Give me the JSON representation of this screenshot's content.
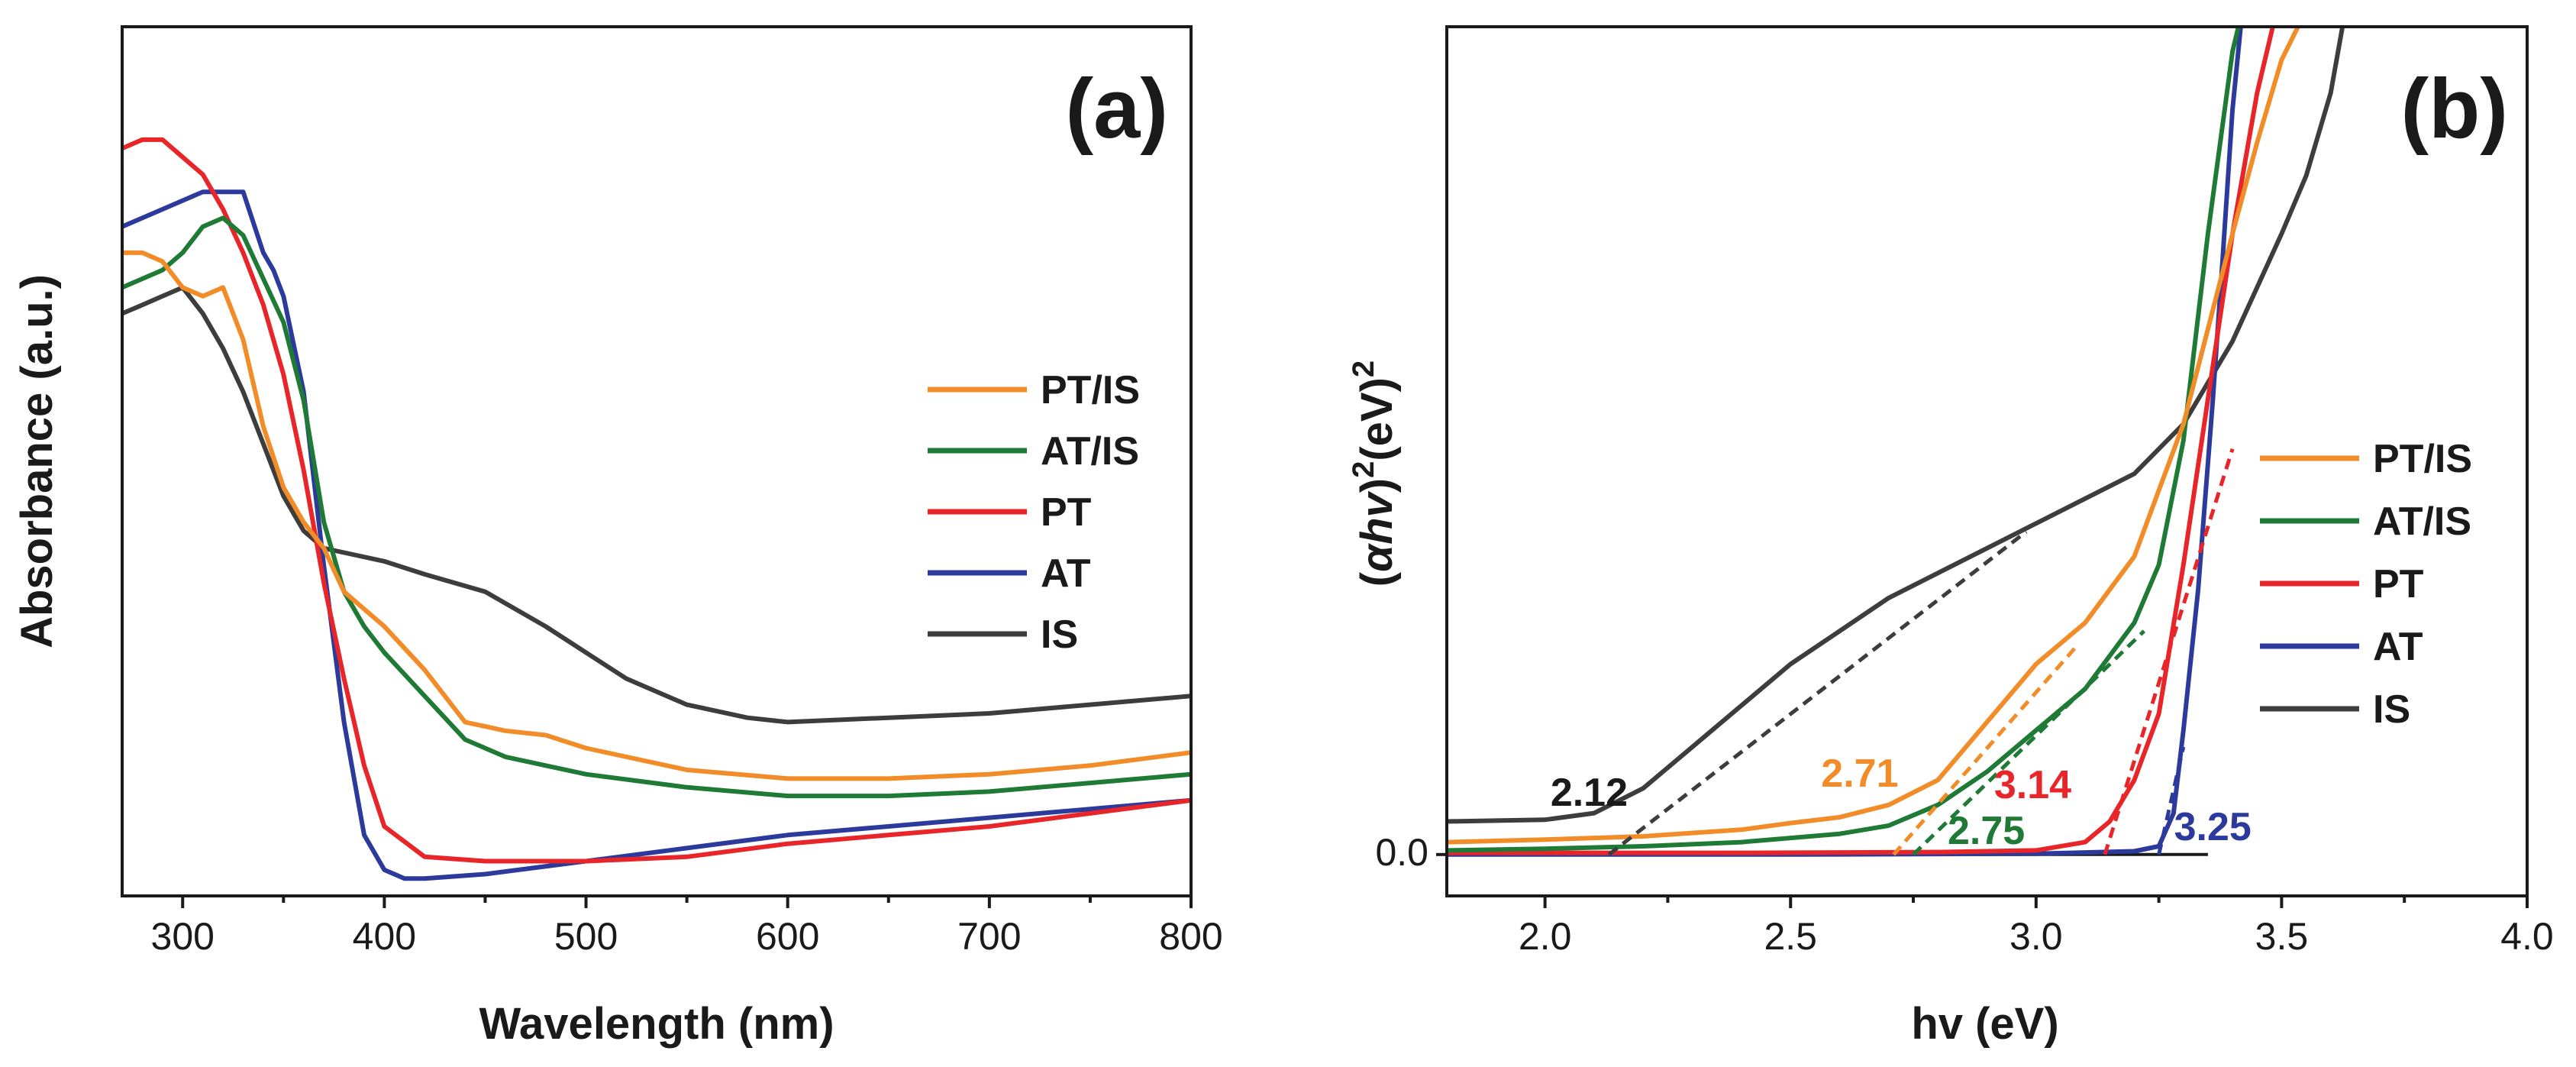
{
  "colors": {
    "PT/IS": "#f28c28",
    "AT/IS": "#1f7a35",
    "PT": "#e8262a",
    "AT": "#2b3a9b",
    "IS": "#3d3d3d"
  },
  "chart_data": [
    {
      "type": "line",
      "panel_label": "(a)",
      "xlabel": "Wavelength (nm)",
      "ylabel": "Absorbance (a.u.)",
      "xlim": [
        270,
        800
      ],
      "ylim": [
        0,
        1
      ],
      "xticks": [
        300,
        400,
        500,
        600,
        700,
        800
      ],
      "yticks": [],
      "legend": {
        "position": "center-right",
        "entries": [
          "PT/IS",
          "AT/IS",
          "PT",
          "AT",
          "IS"
        ]
      },
      "series": [
        {
          "name": "PT/IS",
          "x": [
            270,
            280,
            290,
            300,
            310,
            320,
            330,
            340,
            350,
            360,
            370,
            380,
            390,
            400,
            420,
            440,
            460,
            480,
            500,
            550,
            600,
            650,
            700,
            750,
            800
          ],
          "y": [
            0.74,
            0.74,
            0.73,
            0.7,
            0.69,
            0.7,
            0.64,
            0.54,
            0.47,
            0.43,
            0.4,
            0.35,
            0.33,
            0.31,
            0.26,
            0.2,
            0.19,
            0.185,
            0.17,
            0.145,
            0.135,
            0.135,
            0.14,
            0.15,
            0.165
          ]
        },
        {
          "name": "AT/IS",
          "x": [
            270,
            280,
            290,
            300,
            310,
            320,
            330,
            340,
            350,
            360,
            370,
            380,
            390,
            400,
            420,
            440,
            460,
            480,
            500,
            550,
            600,
            650,
            700,
            750,
            800
          ],
          "y": [
            0.7,
            0.71,
            0.72,
            0.74,
            0.77,
            0.78,
            0.76,
            0.71,
            0.66,
            0.57,
            0.43,
            0.35,
            0.31,
            0.28,
            0.23,
            0.18,
            0.16,
            0.15,
            0.14,
            0.125,
            0.115,
            0.115,
            0.12,
            0.13,
            0.14
          ]
        },
        {
          "name": "PT",
          "x": [
            270,
            280,
            290,
            300,
            310,
            320,
            330,
            340,
            350,
            360,
            370,
            380,
            390,
            400,
            420,
            450,
            500,
            550,
            600,
            650,
            700,
            750,
            800
          ],
          "y": [
            0.86,
            0.87,
            0.87,
            0.85,
            0.83,
            0.79,
            0.74,
            0.68,
            0.6,
            0.49,
            0.36,
            0.25,
            0.15,
            0.08,
            0.045,
            0.04,
            0.04,
            0.045,
            0.06,
            0.07,
            0.08,
            0.095,
            0.11
          ]
        },
        {
          "name": "AT",
          "x": [
            270,
            280,
            290,
            300,
            310,
            320,
            330,
            340,
            345,
            350,
            360,
            370,
            380,
            390,
            400,
            410,
            420,
            450,
            500,
            550,
            600,
            650,
            700,
            750,
            800
          ],
          "y": [
            0.77,
            0.78,
            0.79,
            0.8,
            0.81,
            0.81,
            0.81,
            0.74,
            0.72,
            0.69,
            0.58,
            0.38,
            0.2,
            0.07,
            0.03,
            0.02,
            0.02,
            0.025,
            0.04,
            0.055,
            0.07,
            0.08,
            0.09,
            0.1,
            0.11
          ]
        },
        {
          "name": "IS",
          "x": [
            270,
            280,
            290,
            300,
            310,
            320,
            330,
            340,
            350,
            360,
            370,
            380,
            400,
            420,
            450,
            480,
            500,
            520,
            550,
            580,
            600,
            650,
            700,
            750,
            800
          ],
          "y": [
            0.67,
            0.68,
            0.69,
            0.7,
            0.67,
            0.63,
            0.58,
            0.52,
            0.46,
            0.42,
            0.4,
            0.395,
            0.385,
            0.37,
            0.35,
            0.31,
            0.28,
            0.25,
            0.22,
            0.205,
            0.2,
            0.205,
            0.21,
            0.22,
            0.23
          ]
        }
      ]
    },
    {
      "type": "line",
      "panel_label": "(b)",
      "xlabel": "hv (eV)",
      "ylabel": "(αhv)²(eV)²",
      "ylabel_parts": {
        "open": "(",
        "alpha": "α",
        "hv": "hv",
        "close": ")",
        "sup1": "2",
        "unit": "(eV)",
        "sup2": "2"
      },
      "xlim": [
        1.8,
        4.0
      ],
      "ylim": [
        -0.05,
        1.0
      ],
      "xticks": [
        2.0,
        2.5,
        3.0,
        3.5,
        4.0
      ],
      "xticklabels": [
        "2.0",
        "2.5",
        "3.0",
        "3.5",
        "4.0"
      ],
      "yticks": [
        0.0
      ],
      "yticklabels": [
        "0.0"
      ],
      "legend": {
        "position": "center-right",
        "entries": [
          "PT/IS",
          "AT/IS",
          "PT",
          "AT",
          "IS"
        ]
      },
      "band_gaps": [
        {
          "series": "IS",
          "value": 2.12,
          "label": "2.12"
        },
        {
          "series": "PT/IS",
          "value": 2.71,
          "label": "2.71"
        },
        {
          "series": "AT/IS",
          "value": 2.75,
          "label": "2.75"
        },
        {
          "series": "PT",
          "value": 3.14,
          "label": "3.14"
        },
        {
          "series": "AT",
          "value": 3.25,
          "label": "3.25"
        }
      ],
      "tangents": [
        {
          "series": "IS",
          "x": [
            2.13,
            2.98
          ],
          "y": [
            0.0,
            0.39
          ]
        },
        {
          "series": "PT/IS",
          "x": [
            2.71,
            3.08
          ],
          "y": [
            0.0,
            0.25
          ]
        },
        {
          "series": "AT/IS",
          "x": [
            2.75,
            3.22
          ],
          "y": [
            0.0,
            0.27
          ]
        },
        {
          "series": "PT",
          "x": [
            3.14,
            3.4
          ],
          "y": [
            0.0,
            0.49
          ]
        },
        {
          "series": "AT",
          "x": [
            3.25,
            3.3
          ],
          "y": [
            0.0,
            0.13
          ]
        }
      ],
      "series": [
        {
          "name": "PT/IS",
          "x": [
            1.8,
            2.0,
            2.2,
            2.4,
            2.5,
            2.6,
            2.7,
            2.8,
            2.9,
            3.0,
            3.1,
            3.2,
            3.3,
            3.4,
            3.45,
            3.5,
            3.55
          ],
          "y": [
            0.015,
            0.018,
            0.022,
            0.03,
            0.038,
            0.045,
            0.06,
            0.09,
            0.16,
            0.23,
            0.28,
            0.36,
            0.52,
            0.75,
            0.86,
            0.96,
            1.02
          ]
        },
        {
          "name": "AT/IS",
          "x": [
            1.8,
            2.0,
            2.2,
            2.4,
            2.6,
            2.7,
            2.8,
            2.9,
            3.0,
            3.1,
            3.2,
            3.25,
            3.3,
            3.35,
            3.4,
            3.42
          ],
          "y": [
            0.005,
            0.007,
            0.01,
            0.015,
            0.025,
            0.035,
            0.06,
            0.1,
            0.15,
            0.2,
            0.28,
            0.35,
            0.5,
            0.75,
            0.97,
            1.02
          ]
        },
        {
          "name": "PT",
          "x": [
            1.8,
            2.4,
            2.8,
            3.0,
            3.1,
            3.15,
            3.2,
            3.25,
            3.3,
            3.35,
            3.4,
            3.45,
            3.49
          ],
          "y": [
            0.002,
            0.002,
            0.003,
            0.005,
            0.015,
            0.04,
            0.09,
            0.17,
            0.35,
            0.55,
            0.75,
            0.92,
            1.02
          ]
        },
        {
          "name": "AT",
          "x": [
            1.8,
            2.5,
            3.0,
            3.2,
            3.25,
            3.28,
            3.3,
            3.33,
            3.36,
            3.38,
            3.4,
            3.42
          ],
          "y": [
            0.0,
            0.0,
            0.001,
            0.004,
            0.01,
            0.05,
            0.15,
            0.32,
            0.55,
            0.72,
            0.9,
            1.02
          ]
        },
        {
          "name": "IS",
          "x": [
            1.8,
            2.0,
            2.1,
            2.2,
            2.3,
            2.4,
            2.5,
            2.6,
            2.7,
            2.8,
            2.9,
            3.0,
            3.1,
            3.2,
            3.3,
            3.4,
            3.5,
            3.55,
            3.6,
            3.63
          ],
          "y": [
            0.04,
            0.042,
            0.05,
            0.08,
            0.13,
            0.18,
            0.23,
            0.27,
            0.31,
            0.34,
            0.37,
            0.4,
            0.43,
            0.46,
            0.52,
            0.62,
            0.75,
            0.82,
            0.92,
            1.02
          ]
        }
      ]
    }
  ]
}
